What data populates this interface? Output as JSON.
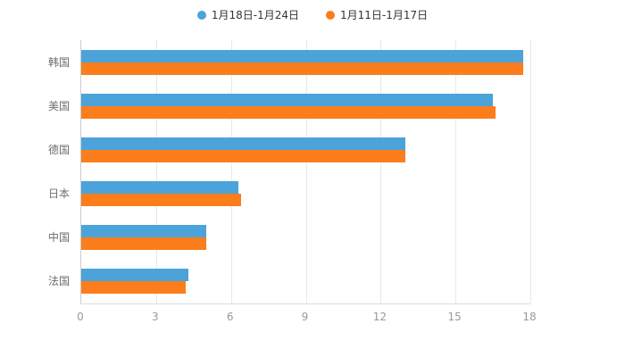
{
  "legend": {
    "items": [
      {
        "label": "1月18日-1月24日",
        "color": "#4BA3D9"
      },
      {
        "label": "1月11日-1月17日",
        "color": "#FC7D1C"
      }
    ]
  },
  "chart_data": {
    "type": "bar",
    "orientation": "horizontal",
    "title": "",
    "xlabel": "",
    "ylabel": "",
    "categories": [
      "韩国",
      "美国",
      "德国",
      "日本",
      "中国",
      "法国"
    ],
    "series": [
      {
        "name": "1月18日-1月24日",
        "color": "#4BA3D9",
        "values": [
          17.7,
          16.5,
          13.0,
          6.3,
          5.0,
          4.3
        ]
      },
      {
        "name": "1月11日-1月17日",
        "color": "#FC7D1C",
        "values": [
          17.7,
          16.6,
          13.0,
          6.4,
          5.0,
          4.2
        ]
      }
    ],
    "xticks": [
      0,
      3,
      6,
      9,
      12,
      15,
      18
    ],
    "xlim": [
      0,
      18
    ],
    "grid": true,
    "legend_position": "top"
  }
}
